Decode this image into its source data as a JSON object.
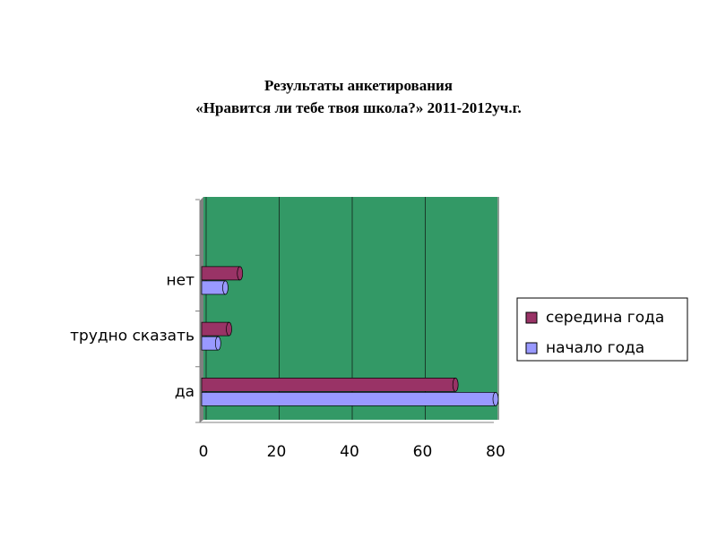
{
  "chart_data": {
    "type": "bar",
    "orientation": "horizontal",
    "title": "Результаты анкетирования",
    "subtitle": "«Нравится ли тебе твоя школа?» 2011-2012уч.г.",
    "categories": [
      "да",
      "трудно сказать",
      "нет",
      null
    ],
    "series": [
      {
        "name": "середина года",
        "color": "#993366",
        "values": [
          69,
          7,
          10,
          null
        ]
      },
      {
        "name": "начало года",
        "color": "#9999ff",
        "values": [
          80,
          4,
          6,
          null
        ]
      }
    ],
    "xlim": [
      0,
      80
    ],
    "xticks": [
      0,
      20,
      40,
      60,
      80
    ],
    "grid": true,
    "plot_background": "#339966",
    "legend": "right"
  }
}
